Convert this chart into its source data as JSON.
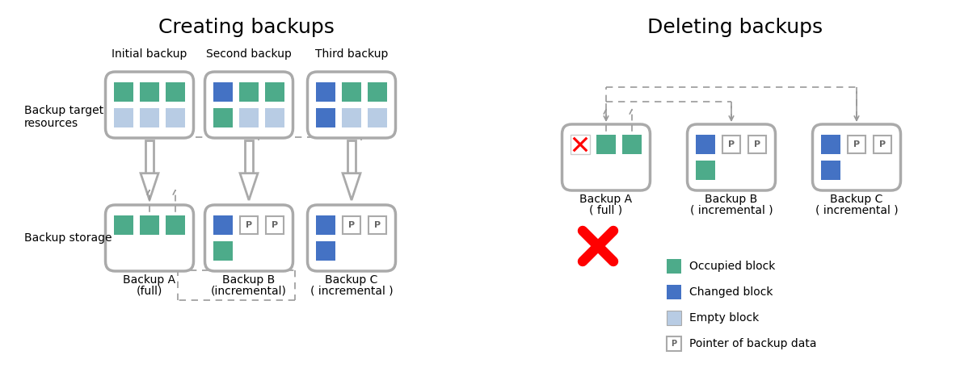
{
  "title_left": "Creating backups",
  "title_right": "Deleting backups",
  "green": "#4dab8a",
  "blue": "#4472c4",
  "light_blue": "#b8cce4",
  "gray_box": "#aaaaaa",
  "white": "#ffffff",
  "red": "#cc0000",
  "bg": "#ffffff",
  "dashed_color": "#999999",
  "legend_items": [
    {
      "label": "Occupied block",
      "color": "#4dab8a"
    },
    {
      "label": "Changed block",
      "color": "#4472c4"
    },
    {
      "label": "Empty block",
      "color": "#b8cce4"
    },
    {
      "label": "Pointer of backup data",
      "color": "white"
    }
  ]
}
